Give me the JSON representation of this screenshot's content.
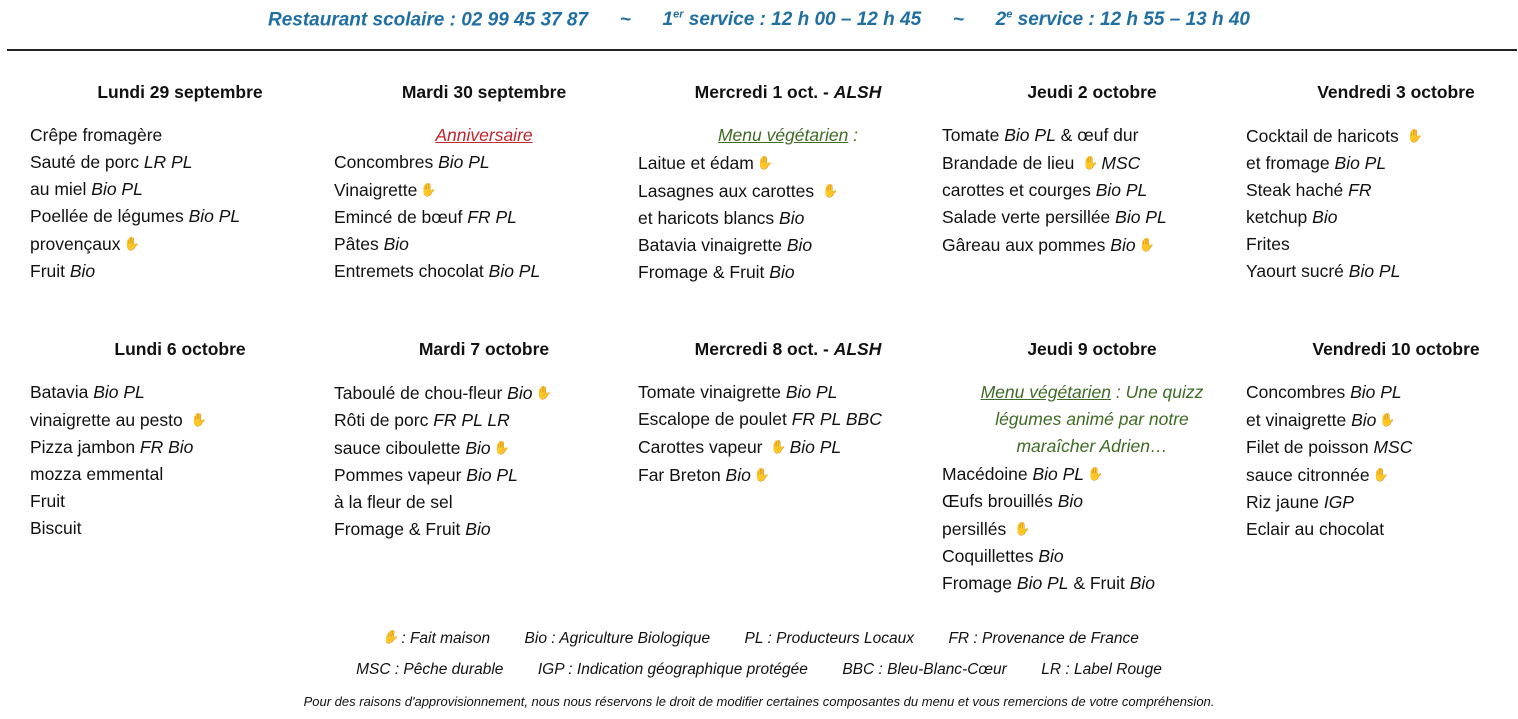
{
  "header": {
    "phone": "Restaurant scolaire : 02 99 45 37 87",
    "sep": "~",
    "service1_num": "1",
    "service1_sup": "er",
    "service1": " service : 12 h 00 – 12 h 45",
    "service2_num": "2",
    "service2_sup": "e",
    "service2": " service : 12 h 55 – 13 h 40",
    "color": "#1f6fa3"
  },
  "week1": [
    {
      "title": [
        {
          "t": "Lundi 29 septembre"
        }
      ],
      "lines": [
        [
          {
            "t": "Crêpe fromagère"
          }
        ],
        [
          {
            "t": "Sauté de porc "
          },
          {
            "i": "LR PL"
          }
        ],
        [
          {
            "t": "au miel "
          },
          {
            "i": "Bio PL"
          }
        ],
        [
          {
            "t": "Poellée de légumes "
          },
          {
            "i": "Bio PL"
          }
        ],
        [
          {
            "t": "provençaux"
          },
          {
            "icon": "hand-icon"
          }
        ],
        [
          {
            "t": "Fruit "
          },
          {
            "i": "Bio"
          }
        ]
      ]
    },
    {
      "title": [
        {
          "t": "Mardi 30 septembre"
        }
      ],
      "note": {
        "color": "red",
        "segs": [
          {
            "u": "Anniversaire"
          }
        ]
      },
      "lines": [
        [
          {
            "t": "Concombres "
          },
          {
            "i": "Bio PL"
          }
        ],
        [
          {
            "t": "Vinaigrette"
          },
          {
            "icon": "hand-icon"
          }
        ],
        [
          {
            "t": "Emincé de bœuf  "
          },
          {
            "i": "FR PL"
          }
        ],
        [
          {
            "t": "Pâtes "
          },
          {
            "i": "Bio"
          }
        ],
        [
          {
            "t": "Entremets chocolat "
          },
          {
            "i": "Bio PL"
          }
        ]
      ]
    },
    {
      "title": [
        {
          "t": "Mercredi 1 oct. - "
        },
        {
          "i": "ALSH"
        }
      ],
      "note": {
        "color": "green",
        "segs": [
          {
            "u": "Menu végétarien"
          },
          {
            "t": " :"
          }
        ]
      },
      "lines": [
        [
          {
            "t": "Laitue et édam"
          },
          {
            "icon": "hand-icon"
          }
        ],
        [
          {
            "t": "Lasagnes aux carottes "
          },
          {
            "icon": "hand-icon"
          }
        ],
        [
          {
            "t": "et haricots blancs "
          },
          {
            "i": "Bio"
          }
        ],
        [
          {
            "t": "Batavia vinaigrette "
          },
          {
            "i": "Bio"
          }
        ],
        [
          {
            "t": "Fromage & Fruit "
          },
          {
            "i": "Bio"
          }
        ]
      ]
    },
    {
      "title": [
        {
          "t": "Jeudi 2 octobre"
        }
      ],
      "lines": [
        [
          {
            "t": "Tomate "
          },
          {
            "i": "Bio PL"
          },
          {
            "t": " & œuf dur"
          }
        ],
        [
          {
            "t": "Brandade de lieu "
          },
          {
            "icon": "hand-icon"
          },
          {
            "i": "MSC"
          }
        ],
        [
          {
            "t": "carottes et courges "
          },
          {
            "i": "Bio PL"
          }
        ],
        [
          {
            "t": "Salade verte persillée "
          },
          {
            "i": "Bio PL"
          }
        ],
        [
          {
            "t": "Gâreau aux pommes "
          },
          {
            "i": "Bio"
          },
          {
            "icon": "hand-icon"
          }
        ]
      ]
    },
    {
      "title": [
        {
          "t": "Vendredi 3 octobre"
        }
      ],
      "lines": [
        [
          {
            "t": "Cocktail de haricots "
          },
          {
            "icon": "hand-icon"
          }
        ],
        [
          {
            "t": "et fromage "
          },
          {
            "i": "Bio PL"
          }
        ],
        [
          {
            "t": "Steak haché "
          },
          {
            "i": "FR"
          }
        ],
        [
          {
            "t": "ketchup "
          },
          {
            "i": "Bio"
          }
        ],
        [
          {
            "t": "Frites"
          }
        ],
        [
          {
            "t": "Yaourt sucré "
          },
          {
            "i": "Bio PL"
          }
        ]
      ]
    }
  ],
  "week2": [
    {
      "title": [
        {
          "t": "Lundi 6 octobre"
        }
      ],
      "lines": [
        [
          {
            "t": "Batavia "
          },
          {
            "i": "Bio PL"
          }
        ],
        [
          {
            "t": "vinaigrette au pesto "
          },
          {
            "icon": "hand-icon"
          }
        ],
        [
          {
            "t": "Pizza jambon "
          },
          {
            "i": "FR Bio"
          }
        ],
        [
          {
            "t": "mozza emmental"
          }
        ],
        [
          {
            "t": "Fruit"
          }
        ],
        [
          {
            "t": "Biscuit"
          }
        ]
      ]
    },
    {
      "title": [
        {
          "t": "Mardi 7 octobre"
        }
      ],
      "lines": [
        [
          {
            "t": "Taboulé de chou-fleur "
          },
          {
            "i": "Bio"
          },
          {
            "icon": "hand-icon"
          }
        ],
        [
          {
            "t": "Rôti de porc "
          },
          {
            "i": "FR PL LR"
          }
        ],
        [
          {
            "t": "sauce ciboulette "
          },
          {
            "i": "Bio"
          },
          {
            "icon": "hand-icon"
          }
        ],
        [
          {
            "t": "Pommes vapeur "
          },
          {
            "i": "Bio PL"
          }
        ],
        [
          {
            "t": "à la fleur de sel"
          }
        ],
        [
          {
            "t": "Fromage & Fruit "
          },
          {
            "i": "Bio"
          }
        ]
      ]
    },
    {
      "title": [
        {
          "t": "Mercredi 8 oct. - "
        },
        {
          "i": "ALSH"
        }
      ],
      "lines": [
        [
          {
            "t": "Tomate vinaigrette "
          },
          {
            "i": "Bio PL"
          }
        ],
        [
          {
            "t": "Escalope de poulet "
          },
          {
            "i": "FR PL BBC"
          }
        ],
        [
          {
            "t": "Carottes vapeur "
          },
          {
            "icon": "hand-icon"
          },
          {
            "i": "Bio PL"
          }
        ],
        [
          {
            "t": "Far Breton "
          },
          {
            "i": "Bio"
          },
          {
            "icon": "hand-icon"
          }
        ]
      ]
    },
    {
      "title": [
        {
          "t": "Jeudi 9 octobre"
        }
      ],
      "note": {
        "color": "green",
        "segs": [
          {
            "u": "Menu végétarien"
          },
          {
            "t": " : Une quizz"
          },
          {
            "br": true
          },
          {
            "t": "légumes animé par notre"
          },
          {
            "br": true
          },
          {
            "t": "maraîcher Adrien…"
          }
        ]
      },
      "lines": [
        [
          {
            "t": "Macédoine "
          },
          {
            "i": "Bio PL"
          },
          {
            "icon": "hand-icon"
          }
        ],
        [
          {
            "t": "Œufs brouillés "
          },
          {
            "i": "Bio"
          }
        ],
        [
          {
            "t": "persillés "
          },
          {
            "icon": "hand-icon"
          }
        ],
        [
          {
            "t": "Coquillettes "
          },
          {
            "i": "Bio"
          }
        ],
        [
          {
            "t": "Fromage "
          },
          {
            "i": "Bio PL"
          },
          {
            "t": " & Fruit "
          },
          {
            "i": "Bio"
          }
        ]
      ]
    },
    {
      "title": [
        {
          "t": "Vendredi 10 octobre"
        }
      ],
      "lines": [
        [
          {
            "t": "Concombres "
          },
          {
            "i": "Bio PL"
          }
        ],
        [
          {
            "t": "et vinaigrette "
          },
          {
            "i": "Bio"
          },
          {
            "icon": "hand-icon"
          }
        ],
        [
          {
            "t": "Filet de poisson "
          },
          {
            "i": "MSC"
          }
        ],
        [
          {
            "t": "sauce citronnée"
          },
          {
            "icon": "hand-icon"
          }
        ],
        [
          {
            "t": "Riz jaune "
          },
          {
            "i": "IGP"
          }
        ],
        [
          {
            "t": "Eclair au chocolat"
          }
        ]
      ]
    }
  ],
  "legend": {
    "row1": [
      [
        {
          "icon": "hand-icon"
        },
        {
          "t": ": Fait maison"
        }
      ],
      [
        {
          "t": "Bio : Agriculture Biologique"
        }
      ],
      [
        {
          "t": "PL : Producteurs Locaux"
        }
      ],
      [
        {
          "t": "FR : Provenance de France"
        }
      ]
    ],
    "row2": [
      [
        {
          "t": "MSC : Pêche durable"
        }
      ],
      [
        {
          "t": "IGP : Indication géographique protégée"
        }
      ],
      [
        {
          "t": "BBC : Bleu-Blanc-Cœur"
        }
      ],
      [
        {
          "t": "LR : Label Rouge"
        }
      ]
    ],
    "disclaimer": "Pour des raisons d'approvisionnement, nous nous réservons le droit de modifier certaines composantes du menu et vous remercions de votre compréhension."
  },
  "colors": {
    "red": "#c0262c",
    "green": "#3d6b24"
  }
}
